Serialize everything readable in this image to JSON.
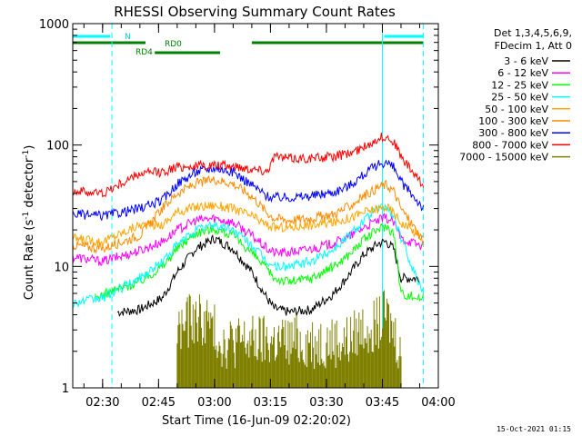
{
  "chart_data": {
    "type": "line",
    "title": "RHESSI Observing Summary Count Rates",
    "xlabel": "Start Time (16-Jun-09 02:20:02)",
    "ylabel": "Count Rate (s",
    "ylabel_sup1": "-1",
    "ylabel_mid": " detector",
    "ylabel_sup2": "-1",
    "ylabel_end": ")",
    "ylim": [
      1,
      1000
    ],
    "yscale": "log",
    "x_range_minutes": [
      2.0,
      100.0
    ],
    "y_ticks": [
      {
        "value": 1,
        "label": "1"
      },
      {
        "value": 10,
        "label": "10"
      },
      {
        "value": 100,
        "label": "100"
      },
      {
        "value": 1000,
        "label": "1000"
      }
    ],
    "x_ticks": [
      {
        "min": 10,
        "label": "02:30"
      },
      {
        "min": 25,
        "label": "02:45"
      },
      {
        "min": 40,
        "label": "03:00"
      },
      {
        "min": 55,
        "label": "03:15"
      },
      {
        "min": 70,
        "label": "03:30"
      },
      {
        "min": 85,
        "label": "03:45"
      },
      {
        "min": 100,
        "label": "04:00"
      }
    ],
    "legend_header": [
      "Det 1,3,4,5,6,9,",
      "FDecim 1, Att 0"
    ],
    "legend_placement": "right",
    "series": [
      {
        "name": "3 - 6 keV",
        "color": "#000000",
        "x": [
          2,
          14,
          20,
          26,
          30,
          35,
          40,
          45,
          50,
          54,
          56,
          60,
          66,
          72,
          76,
          80,
          84,
          86,
          88,
          90,
          95,
          96
        ],
        "y": [
          null,
          4.2,
          4.4,
          5.5,
          9,
          14,
          17,
          14,
          9,
          5.5,
          4.5,
          4.2,
          4.4,
          6,
          8.5,
          12.5,
          15.5,
          16,
          14,
          8,
          8,
          null
        ]
      },
      {
        "name": "6 - 12 keV",
        "color": "#ff00ff",
        "x": [
          2,
          10,
          20,
          26,
          30,
          35,
          40,
          45,
          50,
          54,
          56,
          60,
          66,
          72,
          76,
          80,
          84,
          86,
          88,
          90,
          95,
          96
        ],
        "y": [
          12,
          11,
          13.5,
          16,
          20,
          24,
          25,
          23,
          18,
          14,
          13,
          13,
          14,
          15.5,
          17.5,
          21,
          24,
          25,
          23,
          17,
          15,
          15
        ]
      },
      {
        "name": "12 - 25 keV",
        "color": "#00ff00",
        "x": [
          8,
          14,
          20,
          26,
          30,
          35,
          40,
          45,
          50,
          54,
          56,
          60,
          66,
          72,
          76,
          80,
          84,
          86,
          88,
          90,
          95,
          96
        ],
        "y": [
          5.5,
          6.5,
          7.5,
          10,
          14,
          19,
          20.5,
          18,
          13,
          9.5,
          8,
          7.5,
          8,
          10,
          12.5,
          16.5,
          20.5,
          21.5,
          19,
          6,
          5.5,
          5.5
        ]
      },
      {
        "name": "25 - 50 keV",
        "color": "#00ffff",
        "x": [
          2,
          10,
          20,
          26,
          30,
          35,
          40,
          45,
          50,
          54,
          56,
          60,
          66,
          72,
          76,
          80,
          84,
          86,
          88,
          90,
          95,
          96
        ],
        "y": [
          5,
          5.5,
          8,
          11,
          15,
          20,
          22,
          20,
          15,
          11,
          10,
          10,
          11,
          14,
          18,
          24,
          30,
          31,
          26,
          17,
          7,
          6.5
        ]
      },
      {
        "name": "50 - 100 keV",
        "color": "#ffa500",
        "x": [
          2,
          10,
          20,
          26,
          30,
          35,
          40,
          45,
          50,
          54,
          56,
          60,
          66,
          72,
          76,
          80,
          84,
          86,
          88,
          90,
          95,
          96
        ],
        "y": [
          17,
          16,
          22,
          22,
          28,
          31,
          32,
          30,
          26,
          22,
          21,
          21,
          22,
          23,
          25,
          28,
          30,
          31,
          28,
          23,
          18,
          17
        ]
      },
      {
        "name": "100 - 300 keV",
        "color": "#ff8c00",
        "x": [
          2,
          10,
          20,
          26,
          30,
          35,
          40,
          45,
          50,
          54,
          56,
          60,
          66,
          72,
          76,
          80,
          84,
          86,
          88,
          90,
          95,
          96
        ],
        "y": [
          15,
          14,
          18,
          30,
          40,
          48,
          52,
          48,
          38,
          28,
          25,
          24,
          25,
          27,
          31,
          38,
          45,
          47,
          42,
          30,
          18,
          16
        ]
      },
      {
        "name": "300 - 800 keV",
        "color": "#0000ff",
        "x": [
          2,
          10,
          20,
          26,
          30,
          35,
          40,
          45,
          50,
          54,
          56,
          60,
          66,
          72,
          76,
          80,
          84,
          86,
          88,
          90,
          95,
          96
        ],
        "y": [
          27,
          26,
          30,
          35,
          48,
          60,
          65,
          60,
          47,
          38,
          37,
          37,
          38,
          41,
          46,
          57,
          70,
          72,
          65,
          50,
          33,
          30
        ]
      },
      {
        "name": "800 - 7000 keV",
        "color": "#ff0000",
        "x": [
          2,
          10,
          20,
          26,
          30,
          35,
          40,
          45,
          50,
          54,
          56,
          60,
          66,
          72,
          76,
          80,
          84,
          86,
          88,
          90,
          95,
          96
        ],
        "y": [
          42,
          40,
          58,
          60,
          66,
          67,
          68,
          67,
          64,
          61,
          80,
          78,
          78,
          80,
          85,
          95,
          115,
          117,
          108,
          80,
          50,
          45
        ]
      },
      {
        "name": "7000 - 15000 keV",
        "color": "#808000",
        "x": [
          30,
          34,
          38,
          42,
          76,
          80,
          84,
          86,
          88,
          90
        ],
        "y": [
          2.2,
          2.8,
          2.7,
          1.8,
          1.8,
          2.4,
          2.5,
          3.0,
          2.2,
          1.5
        ]
      }
    ],
    "annotations": [
      {
        "text": "N",
        "color": "#00cccc"
      },
      {
        "text": "RD0",
        "color": "#008000"
      },
      {
        "text": "RD4",
        "color": "#008000"
      }
    ],
    "vlines": [
      {
        "min": 12.5,
        "color": "#00ffff",
        "style": "dashed"
      },
      {
        "min": 85.0,
        "color": "#00ffff",
        "style": "solid"
      },
      {
        "min": 96.0,
        "color": "#00ffff",
        "style": "dashed"
      }
    ],
    "flag_bars": [
      {
        "flag": "N",
        "color": "#00ffff",
        "segments": [
          [
            2,
            12.0
          ],
          [
            85.5,
            96.0
          ]
        ]
      },
      {
        "flag": "RD0",
        "color": "#008000",
        "segments": [
          [
            2,
            21.5
          ],
          [
            50.0,
            96.0
          ]
        ]
      },
      {
        "flag": "RD4",
        "color": "#008000",
        "segments": [
          [
            24.0,
            41.5
          ]
        ]
      }
    ],
    "footer": "15-Oct-2021 01:15"
  }
}
